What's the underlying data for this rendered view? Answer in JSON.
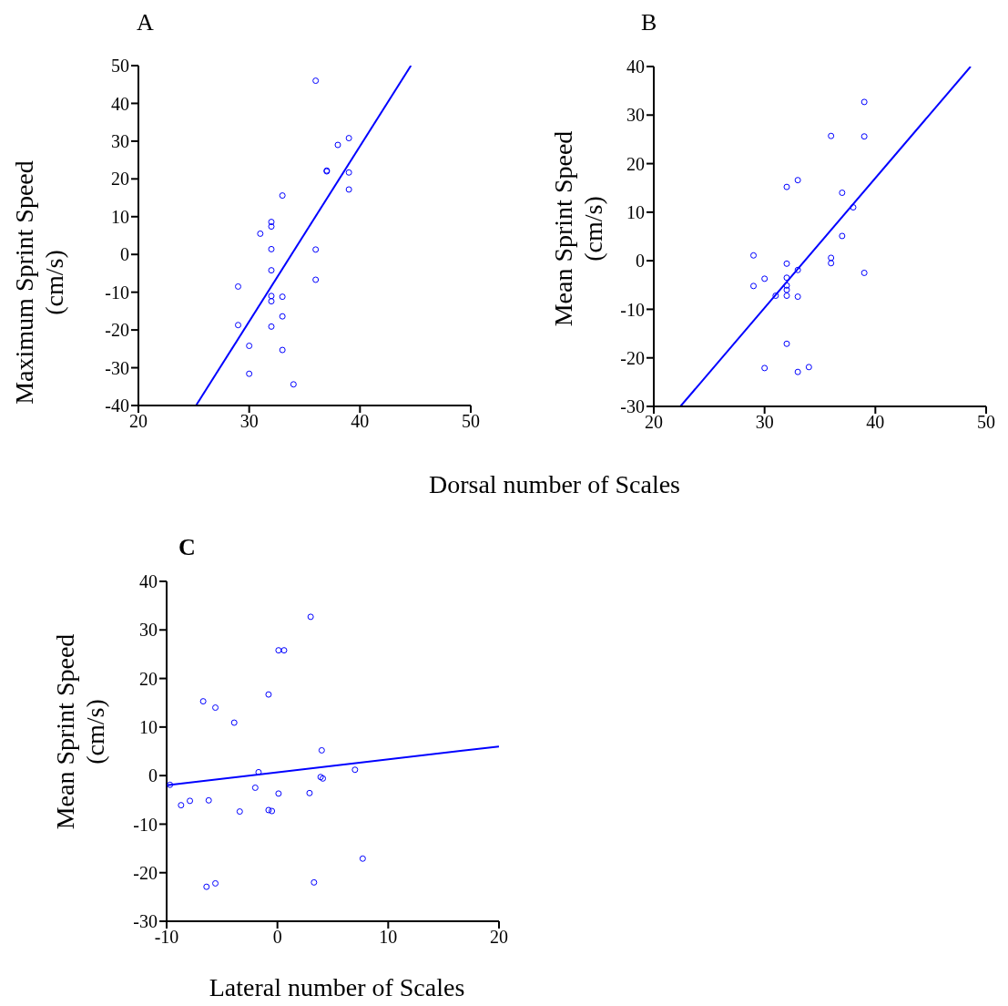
{
  "chart_data": [
    {
      "type": "scatter",
      "title": "A",
      "xlabel": "Dorsal number of Scales",
      "ylabel": "Maximum Sprint Speed (cm/s)",
      "xlim": [
        20,
        50
      ],
      "xticks": [
        20,
        30,
        40,
        50
      ],
      "ylim": [
        -40,
        50
      ],
      "yticks": [
        -40,
        -30,
        -20,
        -10,
        0,
        10,
        20,
        30,
        40,
        50
      ],
      "series": [
        {
          "marker": "circle",
          "color": "#0000ff",
          "x": [
            36,
            38,
            39,
            37,
            37,
            39,
            39,
            33,
            32,
            32,
            31,
            32,
            36,
            32,
            36,
            29,
            32,
            33,
            32,
            33,
            29,
            32,
            30,
            33,
            30,
            34
          ],
          "values": [
            46,
            29,
            30.8,
            22.2,
            22,
            21.7,
            17.2,
            15.6,
            8.6,
            7.4,
            5.5,
            1.4,
            1.3,
            -4.2,
            -6.7,
            -8.5,
            -11,
            -11.2,
            -12.4,
            -16.4,
            -18.7,
            -19.1,
            -24.2,
            -25.3,
            -31.6,
            -34.4
          ]
        },
        {
          "type": "line",
          "marker": "none",
          "color": "#0000ff",
          "x": [
            25.2,
            44.6
          ],
          "values": [
            -40,
            50
          ]
        }
      ]
    },
    {
      "type": "scatter",
      "title": "B",
      "ylabel": "Mean Sprint Speed (cm/s)",
      "xlim": [
        20,
        50
      ],
      "xticks": [
        20,
        30,
        40,
        50
      ],
      "ylim": [
        -30,
        40
      ],
      "yticks": [
        -30,
        -20,
        -10,
        0,
        10,
        20,
        30,
        40
      ],
      "series": [
        {
          "marker": "circle",
          "color": "#0000ff",
          "x": [
            39,
            36,
            39,
            33,
            32,
            37,
            38,
            37,
            29,
            36,
            36,
            32,
            39,
            33,
            30,
            32,
            29,
            32,
            32,
            31,
            32,
            33,
            32,
            30,
            33,
            34
          ],
          "values": [
            32.7,
            25.7,
            25.6,
            16.6,
            15.2,
            14,
            11,
            5.1,
            1.1,
            0.6,
            -0.5,
            -0.6,
            -2.5,
            -1.9,
            -3.7,
            -3.5,
            -5.2,
            -5.1,
            -6,
            -7.2,
            -7.2,
            -7.4,
            -17.1,
            -22.1,
            -22.9,
            -21.9
          ]
        },
        {
          "type": "line",
          "marker": "none",
          "color": "#0000ff",
          "x": [
            22.4,
            48.6
          ],
          "values": [
            -30,
            40
          ]
        }
      ]
    },
    {
      "type": "scatter",
      "title": "C",
      "xlabel": "Lateral number of Scales",
      "ylabel": "Mean Sprint Speed (cm/s)",
      "xlim": [
        -10,
        20
      ],
      "xticks": [
        -10,
        0,
        10,
        20
      ],
      "ylim": [
        -30,
        40
      ],
      "yticks": [
        -30,
        -20,
        -10,
        0,
        10,
        20,
        30,
        40
      ],
      "series": [
        {
          "marker": "circle",
          "color": "#0000ff",
          "x": [
            3.0,
            0.1,
            0.6,
            -0.8,
            -6.7,
            -5.6,
            -3.9,
            4.0,
            -1.7,
            7.0,
            3.9,
            4.1,
            -9.7,
            -2.0,
            0.1,
            2.9,
            -8.7,
            -7.9,
            -6.2,
            -3.4,
            -0.8,
            -0.5,
            7.7,
            3.3,
            -6.4,
            -5.6
          ],
          "values": [
            32.7,
            25.8,
            25.8,
            16.7,
            15.3,
            14,
            10.9,
            5.2,
            0.7,
            1.2,
            -0.3,
            -0.6,
            -1.9,
            -2.5,
            -3.7,
            -3.6,
            -6.1,
            -5.2,
            -5.1,
            -7.4,
            -7.1,
            -7.3,
            -17.1,
            -22,
            -22.9,
            -22.2
          ]
        },
        {
          "type": "line",
          "marker": "none",
          "color": "#0000ff",
          "x": [
            -10,
            20
          ],
          "values": [
            -2,
            6
          ]
        }
      ]
    }
  ]
}
